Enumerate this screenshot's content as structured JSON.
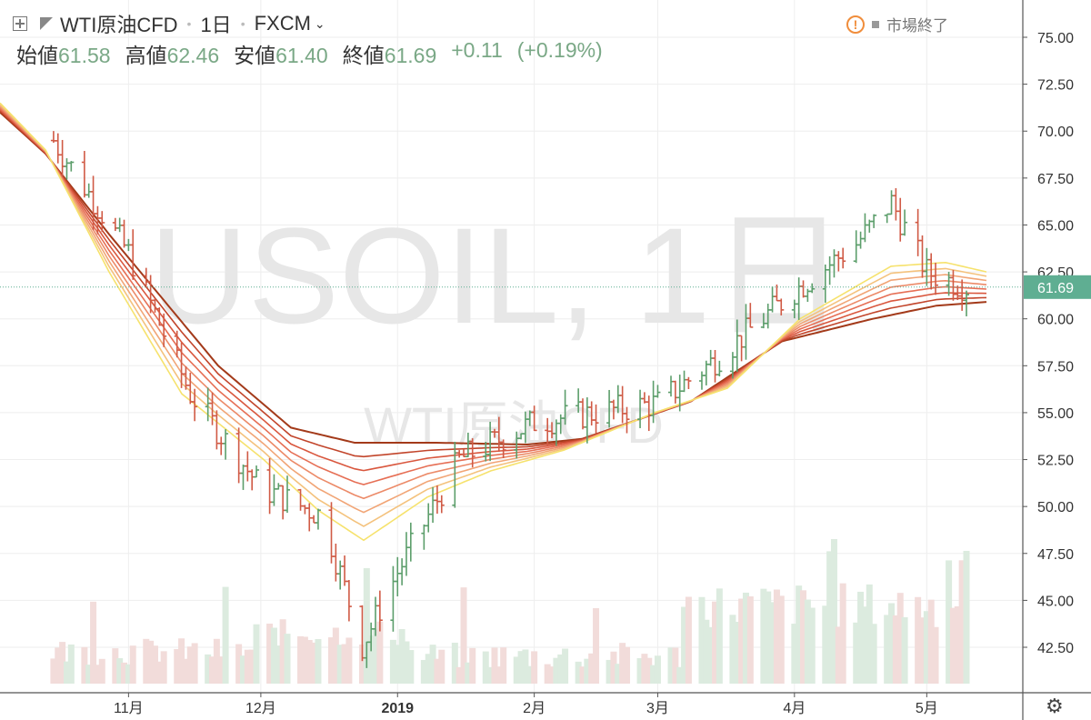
{
  "header": {
    "symbol": "WTI原油CFD",
    "interval": "1日",
    "exchange": "FXCM",
    "ohlc": {
      "open_label": "始値",
      "open": "61.58",
      "high_label": "高値",
      "high": "62.46",
      "low_label": "安値",
      "low": "61.40",
      "close_label": "終値",
      "close": "61.69",
      "change": "+0.11",
      "change_pct": "(+0.19%)"
    },
    "market_status": "市場終了"
  },
  "watermark": {
    "line1": "USOIL, 1日",
    "line2": "WTI原油CFD"
  },
  "colors": {
    "up": "#5c9e6b",
    "down": "#d05a45",
    "change": "#7aa886",
    "last_price_badge": "#5fae92",
    "warn": "#f08d3b",
    "ribbon_slow": "#a33a1a",
    "ribbon_fast": "#f6e26d"
  },
  "icons": {
    "add": "plus-square-icon",
    "flag": "flag-icon",
    "market": "warning-icon",
    "settings": "gear-icon"
  },
  "chart_data": {
    "type": "candlestick",
    "y_axis": {
      "min": 40,
      "max": 77,
      "ticks": [
        "75.00",
        "72.50",
        "70.00",
        "67.50",
        "65.00",
        "62.50",
        "60.00",
        "57.50",
        "55.00",
        "52.50",
        "50.00",
        "47.50",
        "45.00",
        "42.50"
      ]
    },
    "x_axis": {
      "ticks": [
        "11月",
        "12月",
        "2019",
        "2月",
        "3月",
        "4月",
        "5月"
      ]
    },
    "last_price": "61.69",
    "ohlc_monthly_guide": [
      {
        "date": "2018-10-15",
        "close": 69.5
      },
      {
        "date": "2018-11-01",
        "close": 63.5
      },
      {
        "date": "2018-11-15",
        "close": 56.0
      },
      {
        "date": "2018-12-01",
        "close": 51.0
      },
      {
        "date": "2018-12-15",
        "close": 49.5
      },
      {
        "date": "2018-12-24",
        "close": 42.6
      },
      {
        "date": "2019-01-01",
        "close": 46.5
      },
      {
        "date": "2019-01-15",
        "close": 52.5
      },
      {
        "date": "2019-02-01",
        "close": 54.5
      },
      {
        "date": "2019-02-15",
        "close": 55.0
      },
      {
        "date": "2019-03-01",
        "close": 55.5
      },
      {
        "date": "2019-03-15",
        "close": 58.0
      },
      {
        "date": "2019-04-01",
        "close": 61.5
      },
      {
        "date": "2019-04-15",
        "close": 64.0
      },
      {
        "date": "2019-04-23",
        "close": 66.2
      },
      {
        "date": "2019-05-01",
        "close": 62.5
      },
      {
        "date": "2019-05-10",
        "close": 61.69
      }
    ],
    "ribbon": {
      "ma_count": 8,
      "slowest": [
        [
          0,
          71.0
        ],
        [
          50,
          68.8
        ],
        [
          120,
          64.5
        ],
        [
          240,
          57.5
        ],
        [
          320,
          54.2
        ],
        [
          390,
          53.4
        ],
        [
          480,
          53.4
        ],
        [
          580,
          53.3
        ],
        [
          640,
          53.6
        ],
        [
          760,
          55.6
        ],
        [
          860,
          58.8
        ],
        [
          960,
          60.0
        ],
        [
          1030,
          60.7
        ],
        [
          1085,
          60.9
        ]
      ],
      "fastest": [
        [
          0,
          71.5
        ],
        [
          50,
          69.0
        ],
        [
          120,
          62.5
        ],
        [
          200,
          56.0
        ],
        [
          290,
          52.5
        ],
        [
          350,
          49.8
        ],
        [
          400,
          48.2
        ],
        [
          470,
          50.5
        ],
        [
          540,
          51.9
        ],
        [
          620,
          53.0
        ],
        [
          720,
          55.0
        ],
        [
          800,
          56.3
        ],
        [
          880,
          60.0
        ],
        [
          980,
          62.8
        ],
        [
          1040,
          63.0
        ],
        [
          1085,
          62.5
        ]
      ]
    },
    "volume": {
      "bars": 150,
      "max": 33.5
    }
  }
}
